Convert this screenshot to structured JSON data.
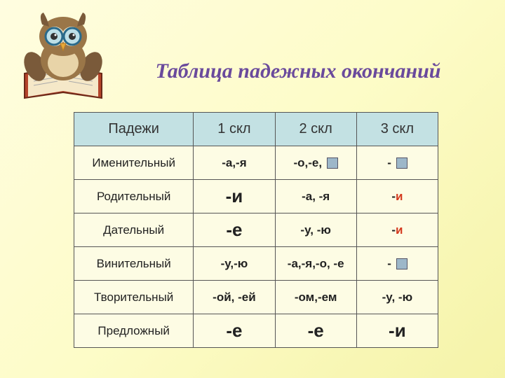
{
  "title": "Таблица падежных окончаний",
  "headers": [
    "Падежи",
    "1 скл",
    "2 скл",
    "3 скл"
  ],
  "rows": [
    {
      "case": "Именительный",
      "c1": {
        "text": "-а,-я",
        "style": "normal"
      },
      "c2": {
        "text": "-о,-е,",
        "style": "normal",
        "square": true
      },
      "c3": {
        "text": "-",
        "style": "normal",
        "square": true
      }
    },
    {
      "case": "Родительный",
      "c1": {
        "text": "-и",
        "style": "big-red"
      },
      "c2": {
        "text": "-а, -я",
        "style": "normal"
      },
      "c3": {
        "text": "-и",
        "style": "dash-red"
      }
    },
    {
      "case": "Дательный",
      "c1": {
        "text": "-е",
        "style": "big-red"
      },
      "c2": {
        "text": "-у, -ю",
        "style": "normal"
      },
      "c3": {
        "text": "-и",
        "style": "dash-red"
      }
    },
    {
      "case": "Винительный",
      "c1": {
        "text": "-у,-ю",
        "style": "normal"
      },
      "c2": {
        "text": "-а,-я,-о, -е",
        "style": "normal"
      },
      "c3": {
        "text": "-",
        "style": "normal",
        "square": true
      }
    },
    {
      "case": "Творительный",
      "c1": {
        "text": "-ой, -ей",
        "style": "normal"
      },
      "c2": {
        "text": "-ом,-ем",
        "style": "normal"
      },
      "c3": {
        "text": "-у, -ю",
        "style": "normal"
      }
    },
    {
      "case": "Предложный",
      "c1": {
        "text": "-е",
        "style": "big-red"
      },
      "c2": {
        "text": "-е",
        "style": "big-red"
      },
      "c3": {
        "text": "-и",
        "style": "big-red"
      }
    }
  ],
  "colors": {
    "title": "#6a4a9c",
    "header_bg": "#c3e1e3",
    "red": "#d43a1f",
    "border": "#555",
    "cell_bg": "#fdfce4"
  }
}
